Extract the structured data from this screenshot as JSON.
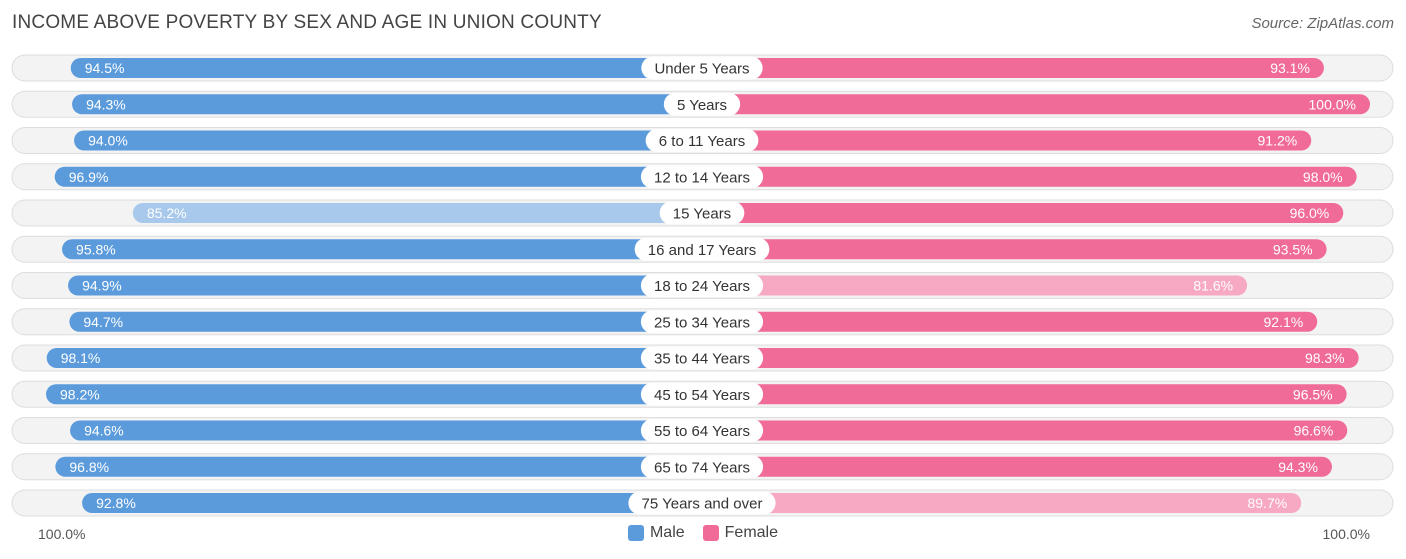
{
  "title": "INCOME ABOVE POVERTY BY SEX AND AGE IN UNION COUNTY",
  "source": "Source: ZipAtlas.com",
  "axis": {
    "left_label": "100.0%",
    "right_label": "100.0%"
  },
  "legend": {
    "male_label": "Male",
    "female_label": "Female"
  },
  "colors": {
    "male": "#5b9bdc",
    "male_light": "#a9c9ec",
    "female": "#f06b98",
    "female_light": "#f7a8c3",
    "track": "#efefef"
  },
  "chart_data": {
    "type": "bar",
    "orientation": "diverging-horizontal",
    "categories": [
      "Under 5 Years",
      "5 Years",
      "6 to 11 Years",
      "12 to 14 Years",
      "15 Years",
      "16 and 17 Years",
      "18 to 24 Years",
      "25 to 34 Years",
      "35 to 44 Years",
      "45 to 54 Years",
      "55 to 64 Years",
      "65 to 74 Years",
      "75 Years and over"
    ],
    "series": [
      {
        "name": "Male",
        "values": [
          94.5,
          94.3,
          94.0,
          96.9,
          85.2,
          95.8,
          94.9,
          94.7,
          98.1,
          98.2,
          94.6,
          96.8,
          92.8
        ],
        "labels": [
          "94.5%",
          "94.3%",
          "94.0%",
          "96.9%",
          "85.2%",
          "95.8%",
          "94.9%",
          "94.7%",
          "98.1%",
          "98.2%",
          "94.6%",
          "96.8%",
          "92.8%"
        ]
      },
      {
        "name": "Female",
        "values": [
          93.1,
          100.0,
          91.2,
          98.0,
          96.0,
          93.5,
          81.6,
          92.1,
          98.3,
          96.5,
          96.6,
          94.3,
          89.7
        ],
        "labels": [
          "93.1%",
          "100.0%",
          "91.2%",
          "98.0%",
          "96.0%",
          "93.5%",
          "81.6%",
          "92.1%",
          "98.3%",
          "96.5%",
          "96.6%",
          "94.3%",
          "89.7%"
        ]
      }
    ],
    "xlim": [
      0,
      100
    ],
    "legend_position": "bottom-center"
  }
}
